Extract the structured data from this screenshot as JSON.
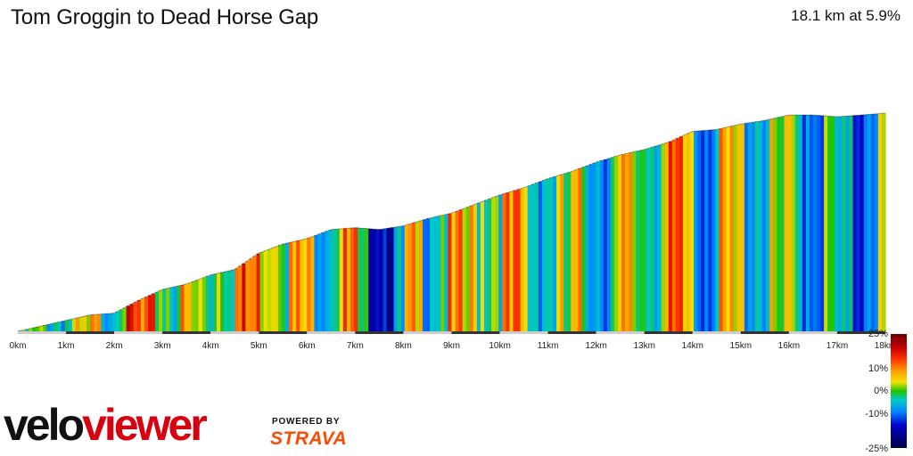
{
  "header": {
    "title": "Tom Groggin to Dead Horse Gap",
    "summary": "18.1 km at 5.9%"
  },
  "branding": {
    "logo_part1": "velo",
    "logo_part2": "viewer",
    "powered_by": "POWERED BY",
    "strava": "STRAVA"
  },
  "colors": {
    "brand_red": "#d8000f",
    "strava_orange": "#fc4c02"
  },
  "chart_data": {
    "type": "area",
    "title": "Tom Groggin to Dead Horse Gap",
    "subtitle": "18.1 km at 5.9%",
    "xlabel": "",
    "ylabel": "",
    "x_unit": "km",
    "xlim": [
      0,
      18
    ],
    "x_ticks": [
      "0km",
      "1km",
      "2km",
      "3km",
      "4km",
      "5km",
      "6km",
      "7km",
      "8km",
      "9km",
      "10km",
      "11km",
      "12km",
      "13km",
      "14km",
      "15km",
      "16km",
      "17km",
      "18km"
    ],
    "grid": false,
    "legend": {
      "type": "gradient",
      "placement": "right",
      "labels": [
        "25%",
        "10%",
        "0%",
        "-10%",
        "-25%"
      ]
    },
    "profile_elevation_relative": [
      [
        0.0,
        0
      ],
      [
        0.5,
        6
      ],
      [
        1.0,
        12
      ],
      [
        1.5,
        18
      ],
      [
        2.0,
        20
      ],
      [
        2.5,
        34
      ],
      [
        3.0,
        46
      ],
      [
        3.5,
        52
      ],
      [
        4.0,
        62
      ],
      [
        4.5,
        68
      ],
      [
        5.0,
        86
      ],
      [
        5.5,
        96
      ],
      [
        6.0,
        102
      ],
      [
        6.5,
        112
      ],
      [
        7.0,
        114
      ],
      [
        7.5,
        112
      ],
      [
        8.0,
        116
      ],
      [
        8.5,
        124
      ],
      [
        9.0,
        130
      ],
      [
        9.5,
        140
      ],
      [
        10.0,
        150
      ],
      [
        10.5,
        158
      ],
      [
        11.0,
        168
      ],
      [
        11.5,
        176
      ],
      [
        12.0,
        186
      ],
      [
        12.5,
        194
      ],
      [
        13.0,
        200
      ],
      [
        13.5,
        208
      ],
      [
        14.0,
        220
      ],
      [
        14.5,
        222
      ],
      [
        15.0,
        228
      ],
      [
        15.5,
        232
      ],
      [
        16.0,
        238
      ],
      [
        16.5,
        238
      ],
      [
        17.0,
        236
      ],
      [
        17.5,
        238
      ],
      [
        18.0,
        240
      ],
      [
        18.1,
        242
      ]
    ],
    "gradient_percent": [
      [
        0.0,
        1
      ],
      [
        0.5,
        4
      ],
      [
        1.0,
        3
      ],
      [
        1.5,
        6
      ],
      [
        2.0,
        12
      ],
      [
        2.5,
        9
      ],
      [
        3.0,
        7
      ],
      [
        3.5,
        5
      ],
      [
        4.0,
        10
      ],
      [
        4.5,
        12
      ],
      [
        5.0,
        14
      ],
      [
        5.5,
        8
      ],
      [
        6.0,
        6
      ],
      [
        6.5,
        9
      ],
      [
        7.0,
        -4
      ],
      [
        7.5,
        -6
      ],
      [
        8.0,
        5
      ],
      [
        8.5,
        7
      ],
      [
        9.0,
        6
      ],
      [
        9.5,
        9
      ],
      [
        10.0,
        8
      ],
      [
        10.5,
        4
      ],
      [
        11.0,
        3
      ],
      [
        11.5,
        5
      ],
      [
        12.0,
        2
      ],
      [
        12.5,
        6
      ],
      [
        13.0,
        7
      ],
      [
        13.5,
        9
      ],
      [
        14.0,
        1
      ],
      [
        14.5,
        5
      ],
      [
        15.0,
        4
      ],
      [
        15.5,
        2
      ],
      [
        16.0,
        1
      ],
      [
        16.5,
        0
      ],
      [
        17.0,
        -5
      ],
      [
        17.5,
        3
      ],
      [
        18.0,
        6
      ]
    ]
  }
}
